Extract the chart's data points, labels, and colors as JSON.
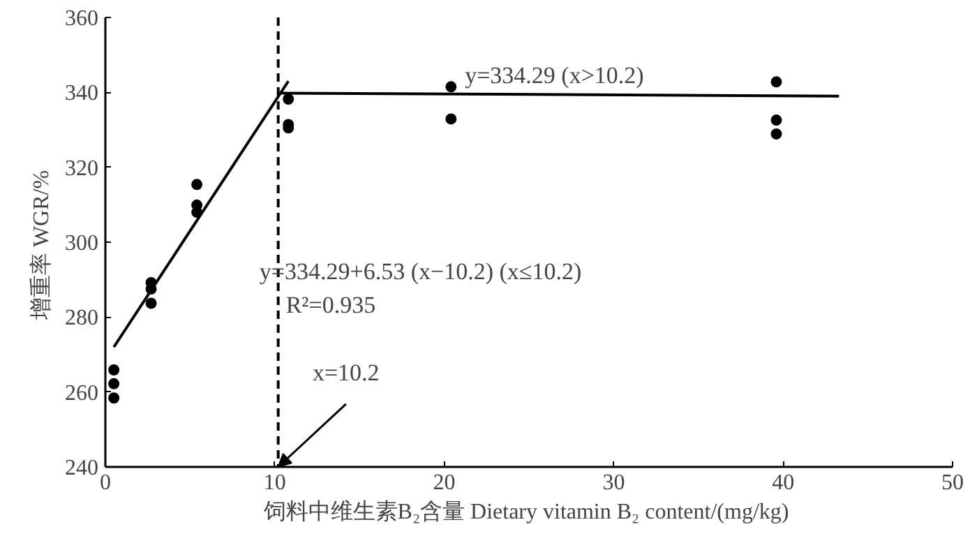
{
  "chart_data": {
    "type": "scatter",
    "xlabel": "饲料中维生素B₂含量  Dietary vitamin B₂ content/(mg/kg)",
    "ylabel": "增重率  WGR/%",
    "xlim": [
      0,
      50
    ],
    "ylim": [
      240,
      360
    ],
    "xticks": [
      0,
      10,
      20,
      30,
      40,
      50
    ],
    "yticks": [
      240,
      260,
      280,
      300,
      320,
      340,
      360
    ],
    "grid": false,
    "marker": "circle",
    "series": [
      {
        "color": "#000000",
        "x": [
          0.5,
          0.5,
          0.5,
          2.7,
          2.7,
          2.7,
          5.4,
          5.4,
          5.4,
          10.8,
          10.8,
          10.8,
          20.4,
          20.4,
          39.6,
          39.6,
          39.6
        ],
        "values": [
          265.9,
          262.2,
          258.4,
          289.2,
          287.5,
          283.7,
          315.4,
          309.9,
          308.0,
          338.2,
          331.4,
          330.5,
          341.5,
          332.9,
          342.8,
          332.6,
          328.9
        ]
      },
      {
        "type": "line",
        "color": "#000000",
        "line_style": "solid",
        "marker": "none",
        "x": [
          0.5,
          10.8
        ],
        "values": [
          272,
          343
        ]
      },
      {
        "type": "line",
        "color": "#000000",
        "line_style": "solid",
        "marker": "none",
        "x": [
          10.4,
          43.3
        ],
        "values": [
          339.8,
          339.0
        ]
      }
    ],
    "ref_lines": [
      {
        "axis": "x",
        "value": 10.2,
        "color": "#000000",
        "line_style": "dashed"
      }
    ],
    "annotations": [
      {
        "text": "y=334.29 (x>10.2)",
        "x": 26.5,
        "y": 339.5
      },
      "y=334.29+6.53 (x−10.2) (x≤10.2)",
      "R²=0.935",
      {
        "text": "x=10.2",
        "x": 10.2,
        "y": 240
      }
    ]
  }
}
